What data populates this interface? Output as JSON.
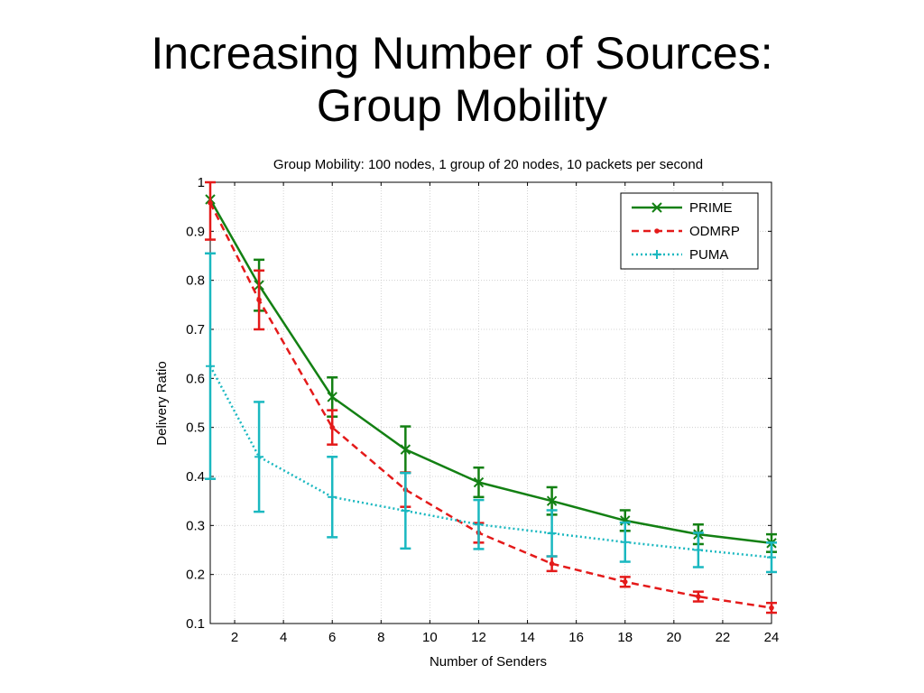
{
  "slide": {
    "title_line1": "Increasing Number of Sources:",
    "title_line2": "Group Mobility"
  },
  "chart_data": {
    "type": "line",
    "title": "Group Mobility: 100 nodes, 1 group of 20 nodes, 10 packets per second",
    "xlabel": "Number of Senders",
    "ylabel": "Delivery Ratio",
    "xlim": [
      1,
      24
    ],
    "ylim": [
      0.1,
      1.0
    ],
    "xticks": [
      2,
      4,
      6,
      8,
      10,
      12,
      14,
      16,
      18,
      20,
      22,
      24
    ],
    "yticks": [
      0.1,
      0.2,
      0.3,
      0.4,
      0.5,
      0.6,
      0.7,
      0.8,
      0.9,
      1
    ],
    "ytick_labels": [
      "0.1",
      "0.2",
      "0.3",
      "0.4",
      "0.5",
      "0.6",
      "0.7",
      "0.8",
      "0.9",
      "1"
    ],
    "grid": true,
    "legend_position": "top-right",
    "x": [
      1,
      3,
      6,
      9,
      12,
      15,
      18,
      21,
      24
    ],
    "series": [
      {
        "name": "PRIME",
        "color": "#138013",
        "dash": "solid",
        "marker": "x",
        "values": [
          0.965,
          0.79,
          0.562,
          0.455,
          0.388,
          0.35,
          0.31,
          0.282,
          0.264
        ],
        "errors": [
          0.0,
          0.052,
          0.04,
          0.047,
          0.03,
          0.028,
          0.021,
          0.02,
          0.018
        ]
      },
      {
        "name": "ODMRP",
        "color": "#e41a1a",
        "dash": "dashed",
        "marker": "dot",
        "values": [
          0.958,
          0.76,
          0.5,
          0.373,
          0.285,
          0.222,
          0.185,
          0.155,
          0.132
        ],
        "errors": [
          0.075,
          0.06,
          0.035,
          0.035,
          0.02,
          0.015,
          0.01,
          0.01,
          0.01
        ]
      },
      {
        "name": "PUMA",
        "color": "#1ab8c0",
        "dash": "dotted",
        "marker": "plus",
        "values": [
          0.625,
          0.44,
          0.358,
          0.33,
          0.302,
          0.284,
          0.266,
          0.25,
          0.235
        ],
        "errors": [
          0.23,
          0.112,
          0.082,
          0.077,
          0.05,
          0.047,
          0.04,
          0.035,
          0.03
        ]
      }
    ]
  }
}
